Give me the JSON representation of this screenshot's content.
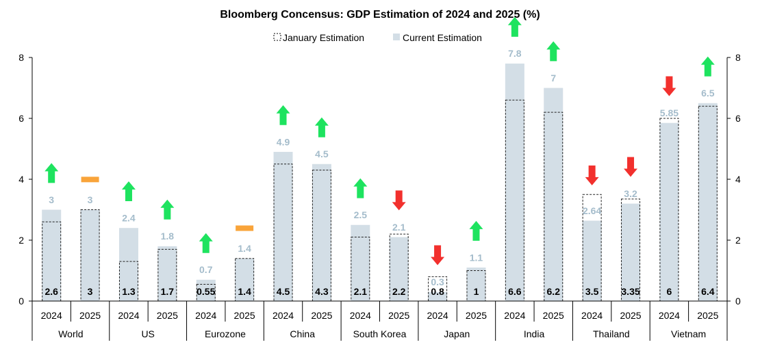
{
  "chart_data": {
    "type": "bar",
    "title": "Bloomberg Concensus: GDP Estimation of 2024 and 2025 (%)",
    "ylim": [
      0,
      8
    ],
    "yticks": [
      0,
      2,
      4,
      6,
      8
    ],
    "grid": false,
    "legend_position": "top-center",
    "groups": [
      "World",
      "US",
      "Eurozone",
      "China",
      "South Korea",
      "Japan",
      "India",
      "Thailand",
      "Vietnam"
    ],
    "years": [
      "2024",
      "2025"
    ],
    "series": [
      {
        "name": "January Estimation",
        "style": "dashed-outline",
        "values": [
          2.6,
          3,
          1.3,
          1.7,
          0.55,
          1.4,
          4.5,
          4.3,
          2.1,
          2.2,
          0.8,
          1,
          6.6,
          6.2,
          3.5,
          3.35,
          6,
          6.4
        ]
      },
      {
        "name": "Current Estimation",
        "color": "#d3dee6",
        "values": [
          3,
          3,
          2.4,
          1.8,
          0.7,
          1.4,
          4.9,
          4.5,
          2.5,
          2.1,
          0.3,
          1.1,
          7.8,
          7,
          2.64,
          3.2,
          5.85,
          6.5
        ]
      }
    ],
    "revision_direction": [
      "up",
      "flat",
      "up",
      "up",
      "up",
      "flat",
      "up",
      "up",
      "up",
      "down",
      "down",
      "up",
      "up",
      "up",
      "down",
      "down",
      "down",
      "up"
    ],
    "colors": {
      "up": "#1ee35f",
      "down": "#f2302d",
      "flat": "#f9a43a",
      "current_label": "#a4bccb"
    }
  }
}
